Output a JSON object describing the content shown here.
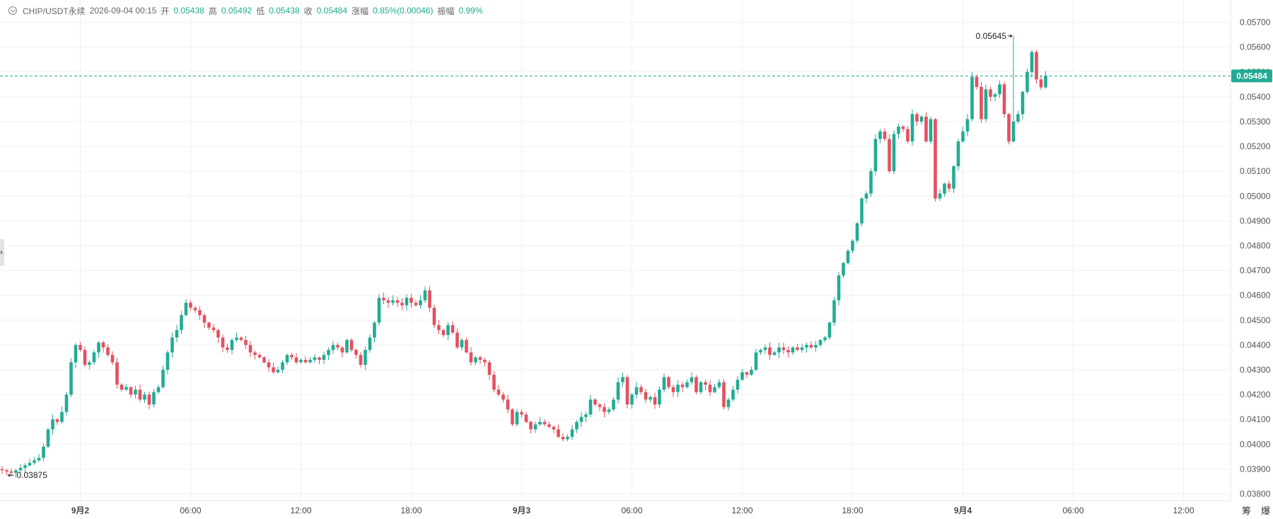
{
  "header": {
    "symbol": "CHIP/USDT永续",
    "datetime": "2026-09-04 00:15",
    "open_label": "开",
    "open": "0.05438",
    "high_label": "高",
    "high": "0.05492",
    "low_label": "低",
    "low": "0.05438",
    "close_label": "收",
    "close": "0.05484",
    "change_label": "涨幅",
    "change": "0.85%(0.00046)",
    "amplitude_label": "振幅",
    "amplitude": "0.99%"
  },
  "colors": {
    "up": "#22ab94",
    "down": "#e5505f",
    "grid": "#f1f1f1",
    "axis_text": "#555555",
    "price_line": "#22ab94"
  },
  "corner_labels": {
    "left": "筹",
    "right": "爆"
  },
  "chart_data": {
    "type": "candlestick",
    "interval_minutes": 15,
    "x_labels": [
      {
        "text": "9月2",
        "time": "9月2 00:00",
        "bold": true
      },
      {
        "text": "06:00",
        "time": "9月2 06:00",
        "bold": false
      },
      {
        "text": "12:00",
        "time": "9月2 12:00",
        "bold": false
      },
      {
        "text": "18:00",
        "time": "9月2 18:00",
        "bold": false
      },
      {
        "text": "9月3",
        "time": "9月3 00:00",
        "bold": true
      },
      {
        "text": "06:00",
        "time": "9月3 06:00",
        "bold": false
      },
      {
        "text": "12:00",
        "time": "9月3 12:00",
        "bold": false
      },
      {
        "text": "18:00",
        "time": "9月3 18:00",
        "bold": false
      },
      {
        "text": "9月4",
        "time": "9月4 00:00",
        "bold": true
      },
      {
        "text": "06:00",
        "time": "9月4 06:00",
        "bold": false
      },
      {
        "text": "12:00",
        "time": "9月4 12:00",
        "bold": false
      }
    ],
    "y_ticks": [
      "0.05700",
      "0.05600",
      "0.05500",
      "0.05400",
      "0.05300",
      "0.05200",
      "0.05100",
      "0.05000",
      "0.04900",
      "0.04800",
      "0.04700",
      "0.04600",
      "0.04500",
      "0.04400",
      "0.04300",
      "0.04200",
      "0.04100",
      "0.04000",
      "0.03900",
      "0.03800"
    ],
    "y_range": [
      0.0377,
      0.0575
    ],
    "last_price": "0.05484",
    "high_marker": "0.05645",
    "low_marker": "0.03875",
    "closes": [
      0.03895,
      0.0389,
      0.03885,
      0.03895,
      0.03905,
      0.03915,
      0.03925,
      0.03935,
      0.03945,
      0.0399,
      0.0406,
      0.041,
      0.0409,
      0.0413,
      0.042,
      0.0433,
      0.044,
      0.0438,
      0.0432,
      0.0433,
      0.0437,
      0.0441,
      0.0439,
      0.0436,
      0.0433,
      0.0424,
      0.0422,
      0.0423,
      0.042,
      0.0422,
      0.0418,
      0.042,
      0.0416,
      0.0421,
      0.0423,
      0.043,
      0.0437,
      0.0443,
      0.0446,
      0.0452,
      0.0457,
      0.0455,
      0.0454,
      0.0452,
      0.0449,
      0.0447,
      0.0446,
      0.0443,
      0.0439,
      0.0438,
      0.0442,
      0.0443,
      0.0442,
      0.044,
      0.0437,
      0.0436,
      0.0435,
      0.0433,
      0.0431,
      0.0429,
      0.043,
      0.0433,
      0.0436,
      0.0435,
      0.0433,
      0.0434,
      0.0433,
      0.0434,
      0.0435,
      0.0434,
      0.0436,
      0.0438,
      0.044,
      0.0439,
      0.0437,
      0.0442,
      0.0438,
      0.0436,
      0.0432,
      0.0438,
      0.0443,
      0.0449,
      0.0459,
      0.0458,
      0.0457,
      0.0458,
      0.0457,
      0.0456,
      0.0459,
      0.0457,
      0.0456,
      0.0458,
      0.0462,
      0.0455,
      0.0448,
      0.0446,
      0.0444,
      0.0448,
      0.0445,
      0.0439,
      0.0442,
      0.0437,
      0.0433,
      0.0435,
      0.0434,
      0.0433,
      0.0428,
      0.0422,
      0.042,
      0.0418,
      0.0414,
      0.0408,
      0.0413,
      0.0412,
      0.0409,
      0.0406,
      0.0408,
      0.0409,
      0.0408,
      0.0407,
      0.0406,
      0.0403,
      0.0402,
      0.0403,
      0.0406,
      0.0409,
      0.0411,
      0.0412,
      0.0418,
      0.0416,
      0.0415,
      0.0413,
      0.0414,
      0.0418,
      0.0425,
      0.0427,
      0.0416,
      0.042,
      0.0423,
      0.0421,
      0.0418,
      0.0419,
      0.0416,
      0.0422,
      0.0427,
      0.0423,
      0.0421,
      0.0424,
      0.0423,
      0.0425,
      0.0427,
      0.0421,
      0.0425,
      0.0424,
      0.0421,
      0.0423,
      0.0425,
      0.0415,
      0.0418,
      0.0422,
      0.0426,
      0.0429,
      0.0428,
      0.043,
      0.0437,
      0.0438,
      0.0439,
      0.0436,
      0.0437,
      0.0439,
      0.0438,
      0.0437,
      0.0439,
      0.0438,
      0.0439,
      0.044,
      0.0439,
      0.044,
      0.0442,
      0.0443,
      0.0449,
      0.0458,
      0.0468,
      0.0473,
      0.0478,
      0.0482,
      0.0489,
      0.0499,
      0.0501,
      0.051,
      0.0523,
      0.0526,
      0.0523,
      0.051,
      0.0525,
      0.0528,
      0.0527,
      0.0522,
      0.0533,
      0.053,
      0.0532,
      0.0522,
      0.0531,
      0.0499,
      0.0501,
      0.0505,
      0.0503,
      0.0512,
      0.0522,
      0.0526,
      0.0531,
      0.0548,
      0.0544,
      0.0531,
      0.0543,
      0.054,
      0.0541,
      0.0545,
      0.0533,
      0.0522,
      0.053,
      0.0533,
      0.0542,
      0.055,
      0.0558,
      0.0547,
      0.05438,
      0.05484
    ]
  }
}
